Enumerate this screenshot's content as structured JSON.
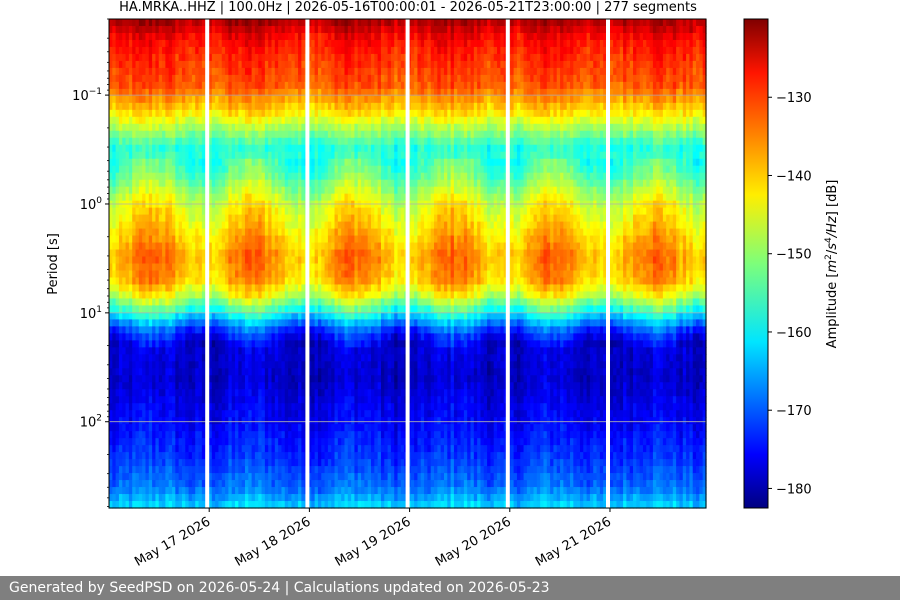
{
  "chart_data": {
    "type": "heatmap",
    "title": "HA.MRKA..HHZ | 100.0Hz | 2026-05-16T00:00:01 - 2026-05-21T23:00:00 | 277 segments",
    "xlabel": "",
    "ylabel": "Period [s]",
    "colorbar_label": "Amplitude [m²/s⁴/Hz] [dB]",
    "colorbar_label_parts": [
      "Amplitude [",
      "m",
      "2",
      "/",
      "s",
      "4",
      "/",
      "Hz",
      "] [dB]"
    ],
    "colormap": "jet",
    "x_start": "2026-05-16T00:00:01",
    "x_end": "2026-05-21T23:00:00",
    "x_ticks": [
      "May 17 2026",
      "May 18 2026",
      "May 19 2026",
      "May 20 2026",
      "May 21 2026"
    ],
    "y_scale": "log",
    "y_range_s": [
      0.02,
      620
    ],
    "y_inverted": true,
    "y_ticks": [
      {
        "base": "10",
        "exp": "−1"
      },
      {
        "base": "10",
        "exp": "0"
      },
      {
        "base": "10",
        "exp": "1"
      },
      {
        "base": "10",
        "exp": "2"
      }
    ],
    "grid": true,
    "segments": 277,
    "gaps_at": [
      "May 17 2026",
      "May 18 2026",
      "May 19 2026",
      "May 20 2026",
      "May 21 2026"
    ],
    "colorbar_range_db": [
      -182.5,
      -120
    ],
    "colorbar_ticks": [
      "−130",
      "−140",
      "−150",
      "−160",
      "−170",
      "−180"
    ],
    "colorbar_tick_values": [
      -130,
      -140,
      -150,
      -160,
      -170,
      -180
    ],
    "profile": {
      "period_s": [
        0.02,
        0.03,
        0.05,
        0.08,
        0.14,
        0.3,
        0.5,
        1.0,
        2.0,
        3.0,
        5.0,
        7.0,
        10,
        15,
        20,
        40,
        70,
        100,
        200,
        400,
        620
      ],
      "amplitude_db": [
        -122,
        -128,
        -131,
        -133,
        -141,
        -157,
        -154,
        -145,
        -140,
        -137,
        -139,
        -146,
        -158,
        -172,
        -177,
        -178,
        -176,
        -175,
        -172,
        -168,
        -161
      ]
    }
  },
  "footer": {
    "text": "Generated by SeedPSD on 2026-05-24 | Calculations updated on 2026-05-23"
  }
}
